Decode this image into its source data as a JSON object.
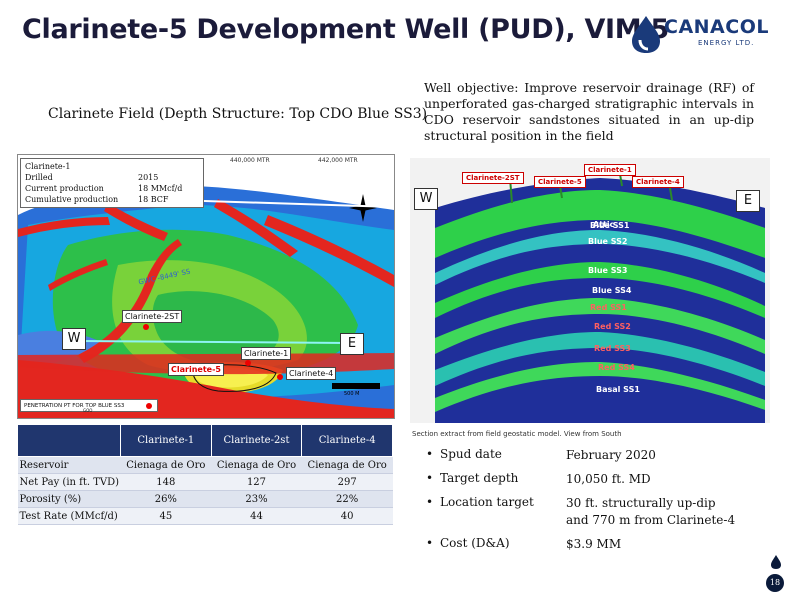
{
  "header": {
    "title": "Clarinete-5 Development Well (PUD), VIM 5",
    "logo_name": "CANACOL",
    "logo_sub": "ENERGY LTD."
  },
  "map_panel": {
    "title": "Clarinete Field (Depth Structure: Top CDO Blue SS3)",
    "info": {
      "well": "Clarinete-1",
      "rows": [
        {
          "key": "Drilled",
          "value": "2015"
        },
        {
          "key": "Current production",
          "value": "18 MMcf/d"
        },
        {
          "key": "Cumulative production",
          "value": "18 BCF"
        }
      ]
    },
    "wells": {
      "c2st": "Clarinete-2ST",
      "c1": "Clarinete-1",
      "c5": "Clarinete-5",
      "c4": "Clarinete-4"
    },
    "dir_w": "W",
    "dir_e": "E",
    "gwc": "GWC -8449' SS",
    "coord1": "440,000 MTR",
    "coord2": "442,000 MTR",
    "scale": "500 M",
    "penetration": "PENETRATION PT FOR TOP BLUE SS3",
    "penetration_sub": "GOO"
  },
  "table": {
    "headers": [
      "",
      "Clarinete-1",
      "Clarinete-2st",
      "Clarinete-4"
    ],
    "rows": [
      [
        "Reservoir",
        "Cienaga de Oro",
        "Cienaga de Oro",
        "Cienaga de Oro"
      ],
      [
        "Net Pay  (in ft. TVD)",
        "148",
        "127",
        "297"
      ],
      [
        "Porosity (%)",
        "26%",
        "23%",
        "22%"
      ],
      [
        "Test Rate (MMcf/d)",
        "45",
        "44",
        "40"
      ]
    ]
  },
  "objective": "Well objective: Improve reservoir drainage (RF) of unperforated gas-charged stratigraphic intervals in CDO reservoir sandstones situated in an up-dip structural position in the field",
  "section": {
    "wells": {
      "c2st": "Clarinete-2ST",
      "c5": "Clarinete-5",
      "c1": "Clarinete-1",
      "c4": "Clarinete-4"
    },
    "dir_w": "W",
    "dir_e": "E",
    "layers": [
      "Attic",
      "Blue SS1",
      "Blue SS2",
      "Blue SS3",
      "Blue SS4",
      "Red SS1",
      "Red SS2",
      "Red SS3",
      "Red SS4",
      "Basal SS1"
    ],
    "caption": "Section extract from field geostatic model. View from South"
  },
  "facts": [
    {
      "label": "Spud date",
      "value": "February 2020",
      "value2": ""
    },
    {
      "label": "Target depth",
      "value": "10,050 ft. MD",
      "value2": ""
    },
    {
      "label": "Location target",
      "value": "30 ft. structurally up-dip",
      "value2": "and 770 m from Clarinete-4"
    },
    {
      "label": "Cost (D&A)",
      "value": "$3.9 MM",
      "value2": ""
    }
  ],
  "page_number": "18"
}
